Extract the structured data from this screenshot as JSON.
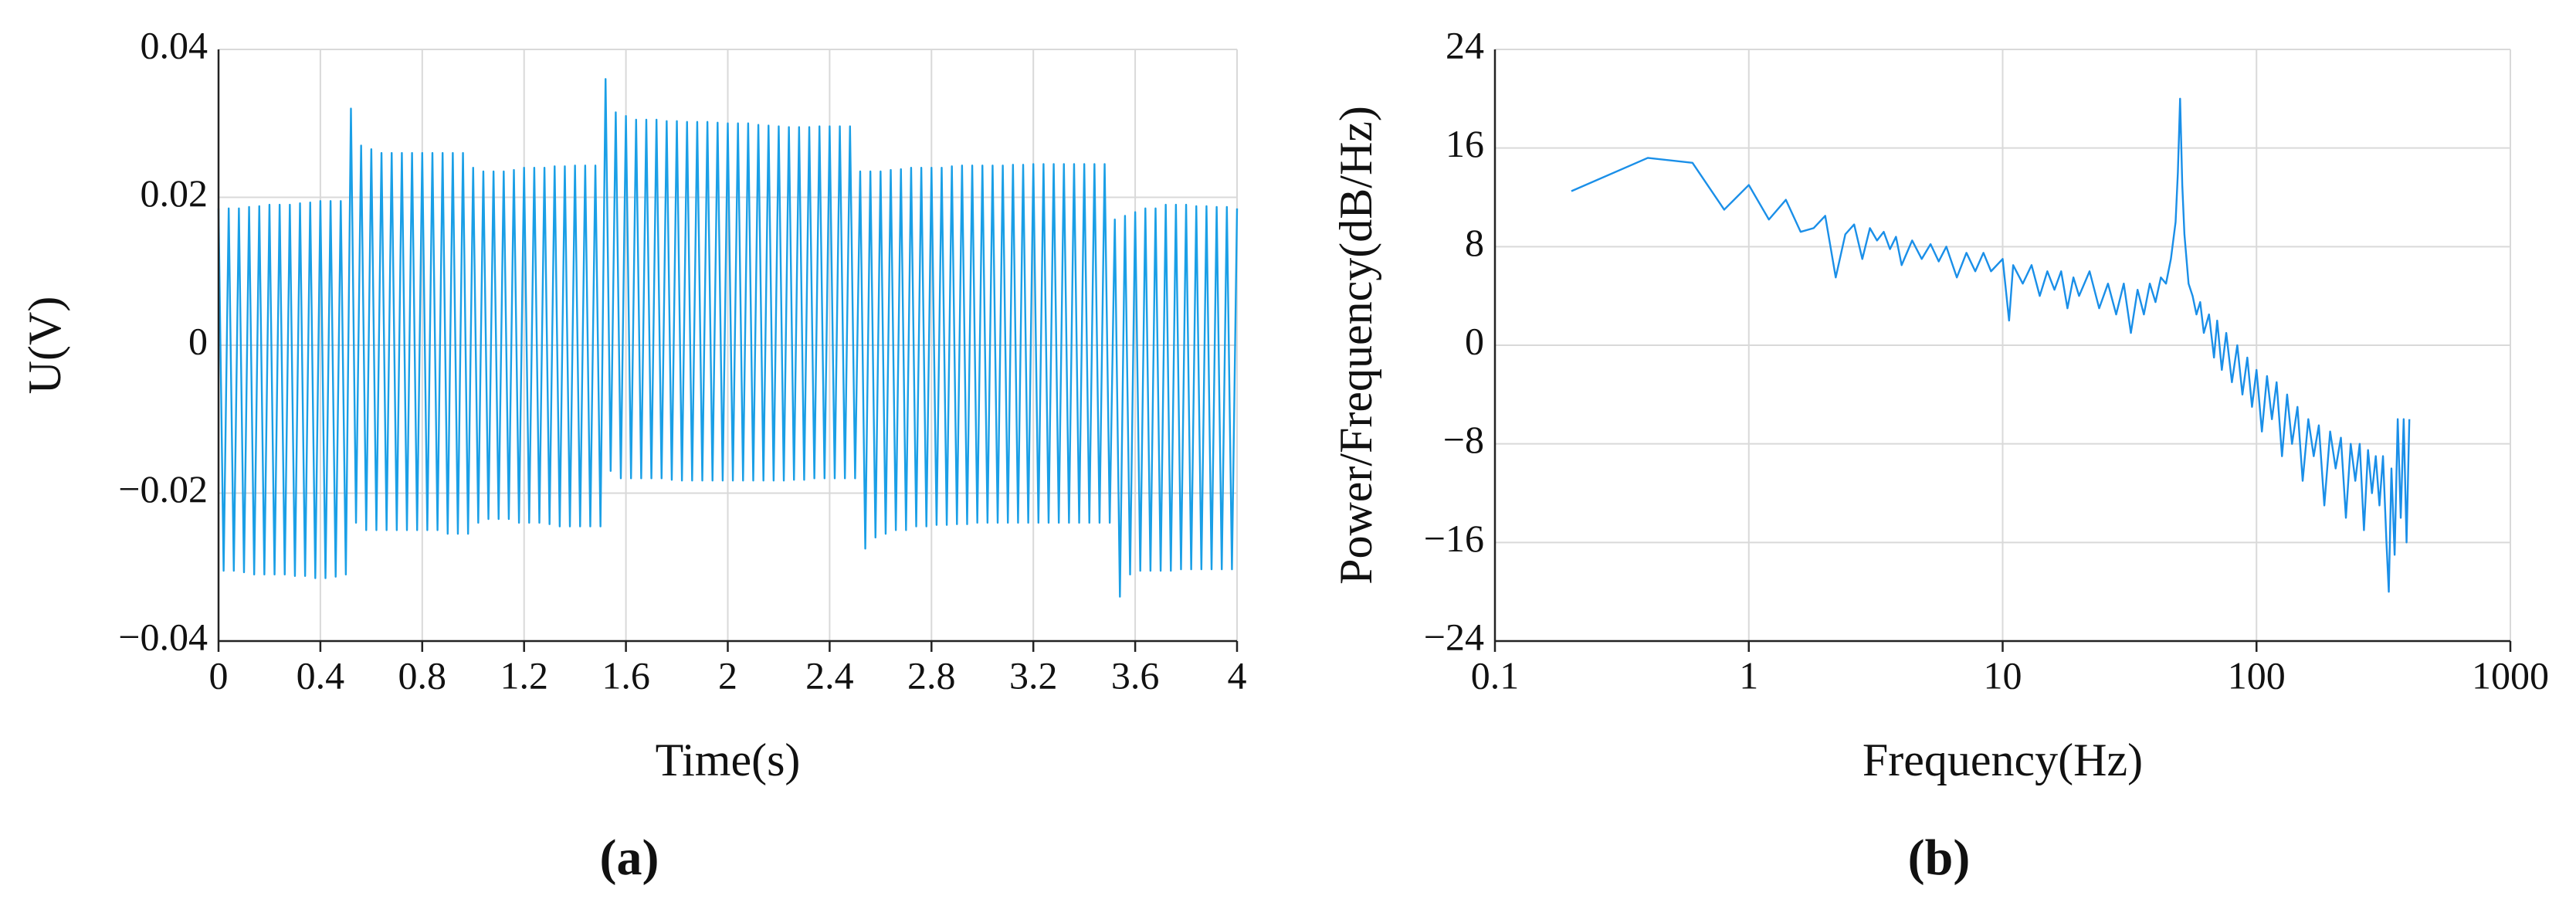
{
  "chart_data": [
    {
      "type": "line",
      "xlabel": "Time(s)",
      "ylabel": "U(V)",
      "caption": "(a)",
      "color": "#1a9fe6",
      "grid": true,
      "xscale": "linear",
      "xlim": [
        0,
        4
      ],
      "xticks": [
        0,
        0.4,
        0.8,
        1.2,
        1.6,
        2,
        2.4,
        2.8,
        3.2,
        3.6,
        4
      ],
      "ylim": [
        -0.04,
        0.04
      ],
      "yticks": [
        {
          "value": -0.04,
          "label": "−0.04"
        },
        {
          "value": -0.02,
          "label": "−0.02"
        },
        0,
        0.02,
        0.04
      ],
      "x": [
        0,
        0.02,
        0.04,
        0.06,
        0.08,
        0.1,
        0.12,
        0.14,
        0.16,
        0.18,
        0.2,
        0.22,
        0.24,
        0.26,
        0.28,
        0.3,
        0.32,
        0.34,
        0.36,
        0.38,
        0.4,
        0.42,
        0.44,
        0.46,
        0.48,
        0.5,
        0.52,
        0.54,
        0.56,
        0.58,
        0.6,
        0.62,
        0.64,
        0.66,
        0.68,
        0.7,
        0.72,
        0.74,
        0.76,
        0.78,
        0.8,
        0.82,
        0.84,
        0.86,
        0.88,
        0.9,
        0.92,
        0.94,
        0.96,
        0.98,
        1,
        1.02,
        1.04,
        1.06,
        1.08,
        1.1,
        1.12,
        1.14,
        1.16,
        1.18,
        1.2,
        1.22,
        1.24,
        1.26,
        1.28,
        1.3,
        1.32,
        1.34,
        1.36,
        1.38,
        1.4,
        1.42,
        1.44,
        1.46,
        1.48,
        1.5,
        1.52,
        1.54,
        1.56,
        1.58,
        1.6,
        1.62,
        1.64,
        1.66,
        1.68,
        1.7,
        1.72,
        1.74,
        1.76,
        1.78,
        1.8,
        1.82,
        1.84,
        1.86,
        1.88,
        1.9,
        1.92,
        1.94,
        1.96,
        1.98,
        2,
        2.02,
        2.04,
        2.06,
        2.08,
        2.1,
        2.12,
        2.14,
        2.16,
        2.18,
        2.2,
        2.22,
        2.24,
        2.26,
        2.28,
        2.3,
        2.32,
        2.34,
        2.36,
        2.38,
        2.4,
        2.42,
        2.44,
        2.46,
        2.48,
        2.5,
        2.52,
        2.54,
        2.56,
        2.58,
        2.6,
        2.62,
        2.64,
        2.66,
        2.68,
        2.7,
        2.72,
        2.74,
        2.76,
        2.78,
        2.8,
        2.82,
        2.84,
        2.86,
        2.88,
        2.9,
        2.92,
        2.94,
        2.96,
        2.98,
        3,
        3.02,
        3.04,
        3.06,
        3.08,
        3.1,
        3.12,
        3.14,
        3.16,
        3.18,
        3.2,
        3.22,
        3.24,
        3.26,
        3.28,
        3.3,
        3.32,
        3.34,
        3.36,
        3.38,
        3.4,
        3.42,
        3.44,
        3.46,
        3.48,
        3.5,
        3.52,
        3.54,
        3.56,
        3.58,
        3.6,
        3.62,
        3.64,
        3.66,
        3.68,
        3.7,
        3.72,
        3.74,
        3.76,
        3.78,
        3.8,
        3.82,
        3.84,
        3.86,
        3.88,
        3.9,
        3.92,
        3.94,
        3.96,
        3.98,
        4
      ],
      "values": [
        0.0185,
        -0.0305,
        0.0185,
        -0.0305,
        0.0185,
        -0.0307,
        0.0187,
        -0.031,
        0.0188,
        -0.031,
        0.019,
        -0.031,
        0.019,
        -0.031,
        0.019,
        -0.0312,
        0.0192,
        -0.0312,
        0.0193,
        -0.0315,
        0.0195,
        -0.0315,
        0.0195,
        -0.0313,
        0.0195,
        -0.031,
        0.032,
        -0.024,
        0.027,
        -0.025,
        0.0265,
        -0.025,
        0.026,
        -0.025,
        0.026,
        -0.025,
        0.026,
        -0.025,
        0.026,
        -0.025,
        0.026,
        -0.025,
        0.026,
        -0.025,
        0.026,
        -0.0255,
        0.026,
        -0.0255,
        0.026,
        -0.0255,
        0.024,
        -0.024,
        0.0235,
        -0.0235,
        0.0235,
        -0.0235,
        0.0235,
        -0.0235,
        0.0237,
        -0.024,
        0.024,
        -0.024,
        0.024,
        -0.024,
        0.024,
        -0.0242,
        0.0242,
        -0.0245,
        0.0242,
        -0.0245,
        0.0243,
        -0.0245,
        0.0243,
        -0.0245,
        0.0243,
        -0.0245,
        0.036,
        -0.017,
        0.0315,
        -0.018,
        0.031,
        -0.018,
        0.0305,
        -0.018,
        0.0305,
        -0.018,
        0.0305,
        -0.018,
        0.0303,
        -0.0182,
        0.0303,
        -0.0183,
        0.0302,
        -0.0183,
        0.0302,
        -0.0183,
        0.0302,
        -0.0183,
        0.0301,
        -0.0183,
        0.03,
        -0.0183,
        0.03,
        -0.0183,
        0.03,
        -0.0183,
        0.0298,
        -0.0183,
        0.0297,
        -0.0183,
        0.0296,
        -0.0183,
        0.0295,
        -0.0182,
        0.0295,
        -0.0182,
        0.0295,
        -0.018,
        0.0296,
        -0.018,
        0.0296,
        -0.018,
        0.0296,
        -0.018,
        0.0296,
        -0.018,
        0.0235,
        -0.0275,
        0.0235,
        -0.026,
        0.0235,
        -0.0255,
        0.0237,
        -0.025,
        0.0238,
        -0.025,
        0.024,
        -0.0245,
        0.024,
        -0.0245,
        0.024,
        -0.0243,
        0.024,
        -0.0243,
        0.0242,
        -0.0242,
        0.0243,
        -0.0242,
        0.0243,
        -0.024,
        0.0243,
        -0.024,
        0.0243,
        -0.024,
        0.0243,
        -0.024,
        0.0244,
        -0.024,
        0.0244,
        -0.024,
        0.0245,
        -0.024,
        0.0245,
        -0.024,
        0.0245,
        -0.024,
        0.0245,
        -0.024,
        0.0245,
        -0.024,
        0.0245,
        -0.024,
        0.0245,
        -0.024,
        0.0245,
        -0.024,
        0.017,
        -0.034,
        0.0175,
        -0.031,
        0.018,
        -0.0305,
        0.0185,
        -0.0305,
        0.0185,
        -0.0305,
        0.019,
        -0.0305,
        0.019,
        -0.0303,
        0.019,
        -0.0303,
        0.0188,
        -0.0303,
        0.0188,
        -0.0303,
        0.0187,
        -0.0303,
        0.0187,
        -0.0303,
        0.0185
      ]
    },
    {
      "type": "line",
      "xlabel": "Frequency(Hz)",
      "ylabel": "Power/Frequency(dB/Hz)",
      "caption": "(b)",
      "color": "#1a8fe8",
      "grid": true,
      "xscale": "log",
      "xlim": [
        0.1,
        1000
      ],
      "xticks": [
        0.1,
        1,
        10,
        100,
        1000
      ],
      "ylim": [
        -24,
        24
      ],
      "yticks": [
        {
          "value": -24,
          "label": "−24"
        },
        {
          "value": -16,
          "label": "−16"
        },
        {
          "value": -8,
          "label": "−8"
        },
        0,
        8,
        16,
        24
      ],
      "x": [
        0.2,
        0.4,
        0.6,
        0.8,
        1,
        1.2,
        1.4,
        1.6,
        1.8,
        2,
        2.2,
        2.4,
        2.6,
        2.8,
        3,
        3.2,
        3.4,
        3.6,
        3.8,
        4,
        4.4,
        4.8,
        5.2,
        5.6,
        6,
        6.6,
        7.2,
        7.8,
        8.4,
        9,
        10,
        10.6,
        11,
        12,
        13,
        14,
        15,
        16,
        17,
        18,
        19,
        20,
        22,
        24,
        26,
        28,
        30,
        32,
        34,
        36,
        38,
        40,
        42,
        44,
        46,
        48,
        49,
        50,
        51,
        52,
        54,
        56,
        58,
        60,
        62,
        65,
        68,
        70,
        73,
        76,
        80,
        84,
        88,
        92,
        96,
        100,
        105,
        110,
        115,
        120,
        126,
        132,
        138,
        145,
        152,
        160,
        168,
        176,
        185,
        195,
        205,
        215,
        225,
        235,
        245,
        255,
        265,
        275,
        285,
        295,
        305,
        315,
        325,
        332,
        340,
        350,
        360,
        370,
        380,
        390,
        400
      ],
      "values": [
        12.5,
        15.2,
        14.8,
        11,
        13,
        10.2,
        11.8,
        9.2,
        9.5,
        10.5,
        5.5,
        9,
        9.8,
        7,
        9.5,
        8.5,
        9.2,
        7.8,
        8.8,
        6.5,
        8.5,
        7,
        8.2,
        6.8,
        8,
        5.5,
        7.5,
        6,
        7.5,
        6,
        7,
        2,
        6.5,
        5,
        6.5,
        4,
        6,
        4.5,
        6,
        3,
        5.5,
        4,
        6,
        3,
        5,
        2.5,
        5,
        1,
        4.5,
        2.5,
        5,
        3.5,
        5.5,
        5,
        7,
        10,
        14,
        20,
        13,
        9,
        5,
        4,
        2.5,
        3.5,
        1,
        2.5,
        -1,
        2,
        -2,
        1,
        -3,
        0,
        -4,
        -1,
        -5,
        -2,
        -7,
        -2.5,
        -6,
        -3,
        -9,
        -4,
        -8,
        -5,
        -11,
        -6,
        -9,
        -6.5,
        -13,
        -7,
        -10,
        -7.5,
        -14,
        -8,
        -11,
        -8,
        -15,
        -8.5,
        -12,
        -9,
        -13,
        -9,
        -16,
        -20,
        -10,
        -17,
        -6,
        -14,
        -6,
        -16,
        -6
      ]
    }
  ]
}
